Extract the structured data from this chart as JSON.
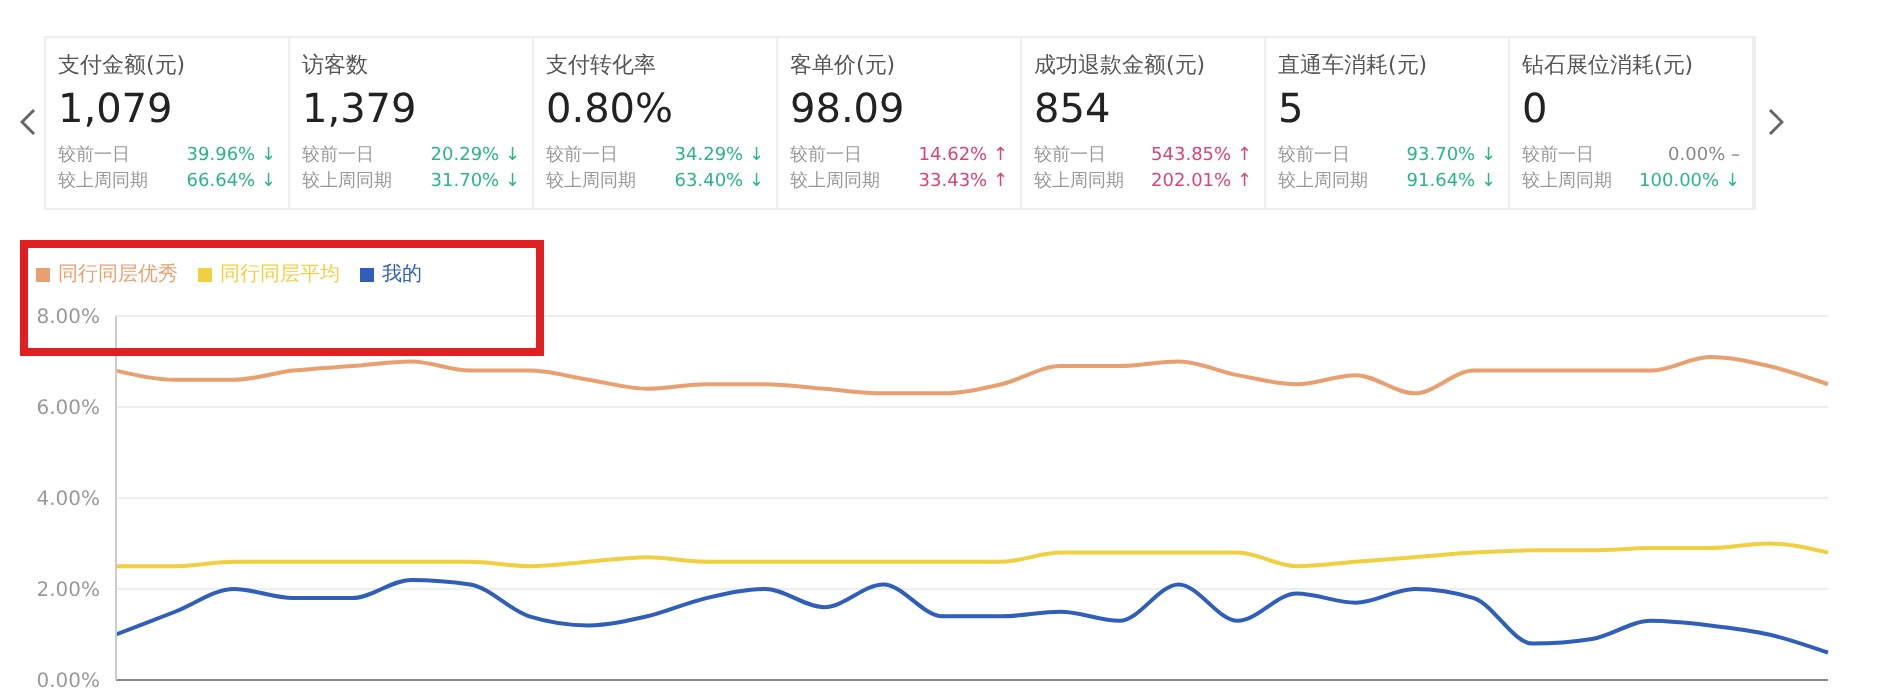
{
  "chart_data": [
    {
      "type": "other",
      "title": "支付金额(元)",
      "annotations": [
        "1,079",
        "较前一日",
        "39.96% ↓",
        "较上周同期",
        "66.64% ↓"
      ],
      "colors": [
        "#2bb58a",
        "#2bb58a"
      ]
    },
    {
      "type": "other",
      "title": "访客数",
      "annotations": [
        "1,379",
        "较前一日",
        "20.29% ↓",
        "较上周同期",
        "31.70% ↓"
      ],
      "colors": [
        "#2bb58a",
        "#2bb58a"
      ]
    },
    {
      "type": "other",
      "title": "支付转化率",
      "annotations": [
        "0.80%",
        "较前一日",
        "34.29% ↓",
        "较上周同期",
        "63.40% ↓"
      ],
      "colors": [
        "#2bb58a",
        "#2bb58a"
      ]
    },
    {
      "type": "other",
      "title": "客单价(元)",
      "annotations": [
        "98.09",
        "较前一日",
        "14.62% ↑",
        "较上周同期",
        "33.43% ↑"
      ],
      "colors": [
        "#d8457a",
        "#d8457a"
      ]
    },
    {
      "type": "other",
      "title": "成功退款金额(元)",
      "annotations": [
        "854",
        "较前一日",
        "543.85% ↑",
        "较上周同期",
        "202.01% ↑"
      ],
      "colors": [
        "#d8457a",
        "#d8457a"
      ]
    },
    {
      "type": "other",
      "title": "直通车消耗(元)",
      "annotations": [
        "5",
        "较前一日",
        "93.70% ↓",
        "较上周同期",
        "91.64% ↓"
      ],
      "colors": [
        "#2bb58a",
        "#2bb58a"
      ]
    },
    {
      "type": "other",
      "title": "钻石展位消耗(元)",
      "annotations": [
        "0",
        "较前一日",
        "0.00% –",
        "较上周同期",
        "100.00% ↓"
      ],
      "colors": [
        "#888888",
        "#2bb58a"
      ]
    },
    {
      "type": "line",
      "categories": [
        null,
        null,
        null,
        null,
        null,
        null,
        null,
        null,
        null,
        null,
        null,
        null,
        null,
        null,
        null,
        null,
        null,
        null,
        null,
        null,
        null,
        null,
        null,
        null,
        null,
        null,
        null,
        null,
        null,
        null
      ],
      "series": [
        {
          "name": "我的",
          "color": "#2f5fb8",
          "values": [
            1.0,
            1.5,
            2.0,
            1.8,
            1.8,
            2.2,
            2.1,
            1.4,
            1.2,
            1.4,
            1.8,
            2.0,
            1.6,
            2.1,
            1.4,
            1.4,
            1.5,
            1.3,
            2.1,
            1.3,
            1.9,
            1.7,
            2.0,
            1.8,
            0.8,
            0.9,
            1.3,
            1.2,
            1.0,
            0.6
          ]
        },
        {
          "name": "同行同层平均",
          "color": "#f0d040",
          "values": [
            2.5,
            2.5,
            2.6,
            2.6,
            2.6,
            2.6,
            2.6,
            2.5,
            2.6,
            2.7,
            2.6,
            2.6,
            2.6,
            2.6,
            2.6,
            2.6,
            2.8,
            2.8,
            2.8,
            2.8,
            2.5,
            2.6,
            2.7,
            2.8,
            2.85,
            2.85,
            2.9,
            2.9,
            3.0,
            2.8
          ]
        },
        {
          "name": "同行同层优秀",
          "color": "#e8a070",
          "values": [
            6.8,
            6.6,
            6.6,
            6.8,
            6.9,
            7.0,
            6.8,
            6.8,
            6.6,
            6.4,
            6.5,
            6.5,
            6.4,
            6.3,
            6.3,
            6.5,
            6.9,
            6.9,
            7.0,
            6.7,
            6.5,
            6.7,
            6.3,
            6.8,
            6.8,
            6.8,
            6.8,
            7.1,
            6.9,
            6.5
          ]
        }
      ],
      "ylim": [
        0,
        8
      ],
      "yticks": [
        {
          "value": 0,
          "label": "0.00%"
        },
        {
          "value": 2,
          "label": "2.00%"
        },
        {
          "value": 4,
          "label": "4.00%"
        },
        {
          "value": 6,
          "label": "6.00%"
        },
        {
          "value": 8,
          "label": "8.00%"
        }
      ],
      "grid": "y",
      "legend": "top left",
      "tick_labels": "y",
      "marker": "none",
      "line_style": "solid"
    }
  ]
}
